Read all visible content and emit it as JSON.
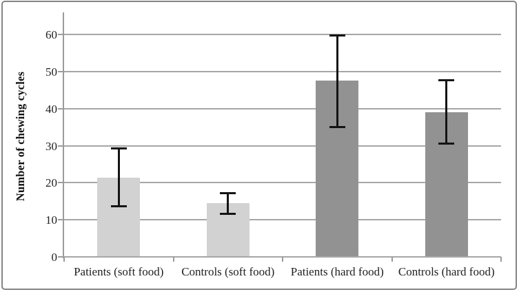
{
  "chart_data": {
    "type": "bar",
    "title": "",
    "xlabel": "",
    "ylabel": "Number of chewing cycles",
    "categories": [
      "Patients (soft food)",
      "Controls (soft food)",
      "Patients (hard food)",
      "Controls (hard food)"
    ],
    "values": [
      21.4,
      14.5,
      47.6,
      39
    ],
    "error_low": [
      13.5,
      11.5,
      35,
      30.4
    ],
    "error_high": [
      29.5,
      17.5,
      60,
      48
    ],
    "yticks": [
      0,
      10,
      20,
      30,
      40,
      50,
      60
    ],
    "ylim": [
      0,
      66
    ],
    "grid": true,
    "legend": "none",
    "bar_colors": [
      "#d2d2d2",
      "#d2d2d2",
      "#929292",
      "#929292"
    ],
    "gridline_color": "#a6a6a6",
    "axis_color": "#9b9b9b",
    "error_bar_color": "#141414"
  }
}
